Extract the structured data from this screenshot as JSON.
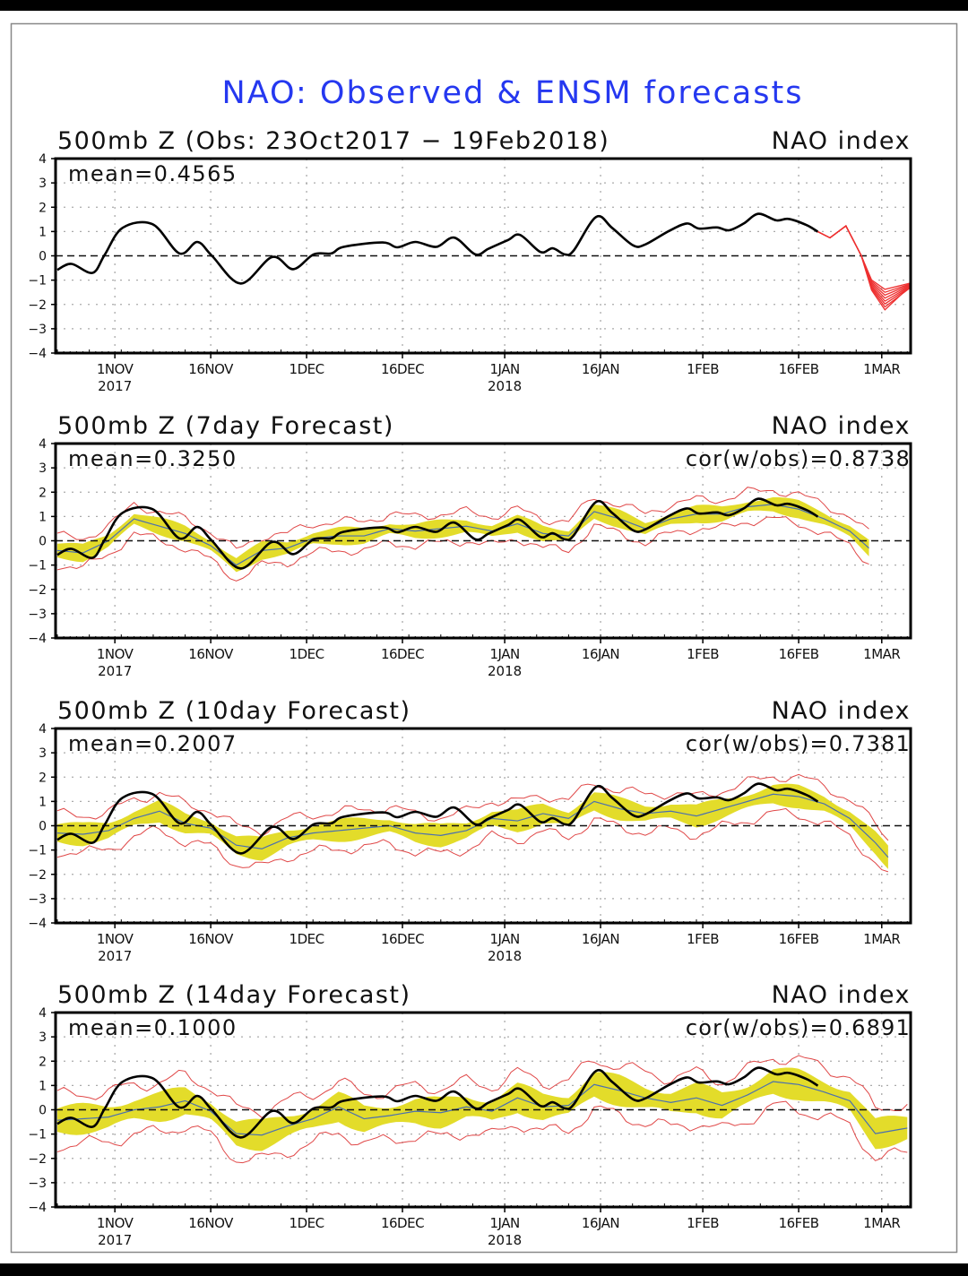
{
  "chart_data": {
    "type": "line",
    "title": "NAO: Observed & ENSM forecasts",
    "colors": {
      "title": "#2538f0",
      "observed": "#000000",
      "ens_mean": "#4a6fb0",
      "ens_band": "#e3dc2a",
      "ens_envelope": "#e04848",
      "forecast_members": "#ee3030"
    },
    "x_axis": {
      "start_date": "23Oct2017",
      "unit": "days since 23Oct2017",
      "range": [
        0,
        133.5
      ],
      "ticks": [
        {
          "day": 9,
          "label": "1NOV",
          "year": "2017"
        },
        {
          "day": 24,
          "label": "16NOV",
          "year": ""
        },
        {
          "day": 39,
          "label": "1DEC",
          "year": ""
        },
        {
          "day": 54,
          "label": "16DEC",
          "year": ""
        },
        {
          "day": 70,
          "label": "1JAN",
          "year": "2018"
        },
        {
          "day": 85,
          "label": "16JAN",
          "year": ""
        },
        {
          "day": 101,
          "label": "1FEB",
          "year": ""
        },
        {
          "day": 116,
          "label": "16FEB",
          "year": ""
        },
        {
          "day": 129,
          "label": "1MAR",
          "year": ""
        }
      ]
    },
    "y_axis": {
      "range": [
        -4,
        4
      ],
      "ticks": [
        "4",
        "3",
        "2",
        "1",
        "0",
        "−1",
        "−2",
        "−3",
        "−4"
      ]
    },
    "observed": {
      "days": [
        0,
        2.2,
        5.5,
        7.4,
        10.2,
        14.9,
        19.1,
        21.9,
        24.2,
        28.7,
        33.6,
        36.9,
        40.1,
        42.9,
        44.8,
        50.9,
        53.2,
        56,
        59.3,
        62.1,
        65.4,
        67.5,
        70.5,
        72.4,
        75.6,
        77.5,
        79.4,
        80.8,
        84.3,
        86.8,
        90.1,
        92,
        95.7,
        98.5,
        100.4,
        103.2,
        105.1,
        107.4,
        109.7,
        112.5,
        114.4,
        117.2,
        119
      ],
      "values": [
        -0.58,
        -0.33,
        -0.7,
        0.04,
        1.15,
        1.3,
        0.1,
        0.57,
        0.0,
        -1.14,
        -0.05,
        -0.55,
        0.06,
        0.1,
        0.37,
        0.55,
        0.35,
        0.57,
        0.37,
        0.75,
        0.06,
        0.3,
        0.65,
        0.86,
        0.16,
        0.31,
        0.06,
        0.22,
        1.6,
        1.15,
        0.43,
        0.47,
        1.02,
        1.33,
        1.12,
        1.17,
        1.05,
        1.33,
        1.73,
        1.46,
        1.52,
        1.27,
        0.99
      ]
    },
    "ensm_forecast": {
      "days": [
        119,
        120.9,
        123.4,
        125.8,
        127.4,
        129.5,
        133.5
      ],
      "values": [
        0.99,
        0.74,
        1.23,
        0.0,
        -1.2,
        -1.8,
        -1.2
      ],
      "member_end_values": [
        -0.6,
        -0.85,
        -1.0,
        -1.15,
        -1.3,
        -1.45,
        -1.6,
        -1.75
      ]
    },
    "panels": [
      {
        "title": "500mb Z (Obs: 23Oct2017 − 19Feb2018)",
        "right_label": "NAO index",
        "mean_label": "mean=0.4565",
        "cor_label": ""
      },
      {
        "title": "500mb Z (7day Forecast)",
        "right_label": "NAO index",
        "mean_label": "mean=0.3250",
        "cor_label": "cor(w/obs)=0.8738",
        "ens_days": [
          0,
          4,
          8,
          12,
          16,
          20,
          24,
          28,
          32,
          36,
          40,
          44,
          48,
          52,
          56,
          60,
          64,
          68,
          72,
          76,
          80,
          84,
          88,
          92,
          96,
          100,
          104,
          108,
          112,
          116,
          120,
          124,
          127
        ],
        "ens_mean": [
          -0.4,
          -0.5,
          0.0,
          0.9,
          0.6,
          0.3,
          -0.2,
          -1.0,
          -0.4,
          -0.3,
          0.1,
          0.2,
          0.2,
          0.5,
          0.4,
          0.5,
          0.6,
          0.4,
          0.7,
          0.3,
          0.2,
          1.2,
          0.9,
          0.5,
          0.9,
          1.1,
          1.1,
          1.4,
          1.5,
          1.3,
          0.9,
          0.4,
          -0.3
        ],
        "band_halfwidth": 0.35,
        "envelope_halfwidth": 0.7
      },
      {
        "title": "500mb Z (10day Forecast)",
        "right_label": "NAO index",
        "mean_label": "mean=0.2007",
        "cor_label": "cor(w/obs)=0.7381",
        "ens_days": [
          0,
          4,
          8,
          12,
          16,
          20,
          24,
          28,
          32,
          36,
          40,
          44,
          48,
          52,
          56,
          60,
          64,
          68,
          72,
          76,
          80,
          84,
          88,
          92,
          96,
          100,
          104,
          108,
          112,
          116,
          120,
          124,
          128,
          130
        ],
        "ens_mean": [
          -0.3,
          -0.35,
          -0.2,
          0.3,
          0.6,
          0.1,
          -0.1,
          -0.8,
          -0.95,
          -0.5,
          -0.3,
          -0.2,
          -0.1,
          0.0,
          -0.3,
          -0.4,
          -0.2,
          0.3,
          0.2,
          0.5,
          0.3,
          1.0,
          0.7,
          0.5,
          0.6,
          0.4,
          0.7,
          1.0,
          1.3,
          1.2,
          0.9,
          0.3,
          -0.7,
          -1.3
        ],
        "band_halfwidth": 0.45,
        "envelope_halfwidth": 0.9
      },
      {
        "title": "500mb Z (14day Forecast)",
        "right_label": "NAO index",
        "mean_label": "mean=0.1000",
        "cor_label": "cor(w/obs)=0.6891",
        "ens_days": [
          0,
          4,
          8,
          12,
          16,
          20,
          24,
          28,
          32,
          36,
          40,
          44,
          48,
          52,
          56,
          60,
          64,
          68,
          72,
          76,
          80,
          84,
          88,
          92,
          96,
          100,
          104,
          108,
          112,
          116,
          120,
          124,
          128,
          133.5
        ],
        "ens_mean": [
          -0.43,
          -0.37,
          -0.3,
          0.0,
          0.12,
          0.37,
          -0.06,
          -0.98,
          -1.04,
          -0.67,
          -0.37,
          0.12,
          -0.37,
          -0.24,
          -0.06,
          -0.12,
          0.12,
          -0.06,
          0.49,
          0.12,
          0.18,
          1.04,
          0.79,
          0.49,
          0.3,
          0.49,
          0.18,
          0.61,
          1.16,
          1.04,
          0.73,
          0.37,
          -0.98,
          -0.73
        ],
        "band_halfwidth": 0.6,
        "envelope_halfwidth": 1.2
      }
    ]
  }
}
